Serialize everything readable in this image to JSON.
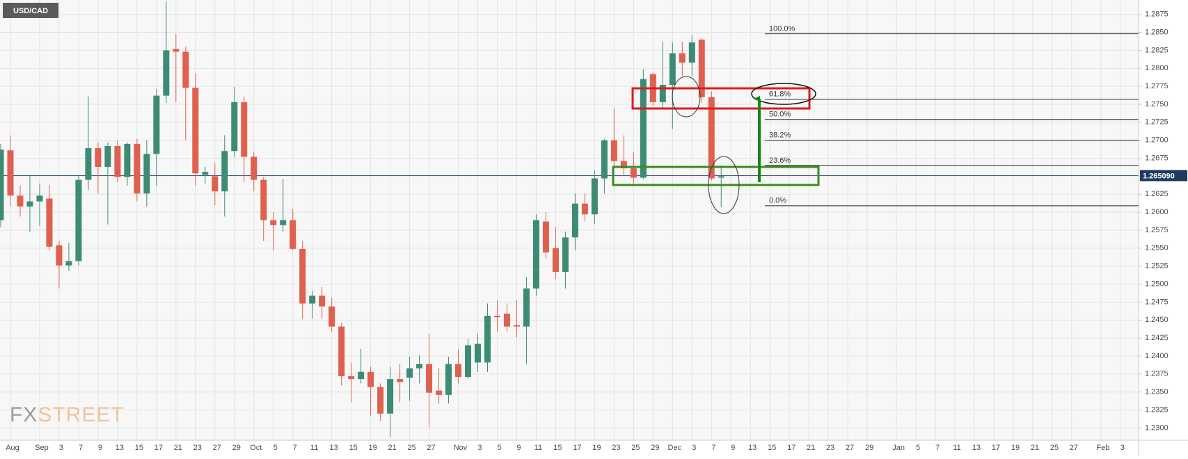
{
  "chart_data": {
    "type": "candlestick",
    "title": "USD/CAD",
    "watermark": {
      "fx": "FX",
      "street": "STREET"
    },
    "categories": [
      null,
      "Aug",
      null,
      null,
      "Sep",
      null,
      "3",
      null,
      "7",
      null,
      "9",
      null,
      "13",
      null,
      "15",
      null,
      "17",
      null,
      "21",
      null,
      "23",
      null,
      "27",
      null,
      "29",
      null,
      "Oct",
      null,
      "5",
      null,
      "7",
      null,
      "11",
      null,
      "13",
      null,
      "15",
      null,
      "19",
      null,
      "21",
      null,
      "25",
      null,
      "27",
      null,
      null,
      "Nov",
      null,
      "3",
      null,
      "5",
      null,
      "9",
      null,
      "11",
      null,
      "15",
      null,
      "17",
      null,
      "19",
      null,
      "23",
      null,
      "25",
      null,
      "29",
      null,
      "Dec",
      null,
      "3",
      null,
      "7",
      null,
      "9",
      null,
      "13",
      null,
      "15",
      null,
      "17",
      null,
      "21",
      null,
      "23",
      null,
      "27",
      null,
      "29",
      null,
      null,
      "Jan",
      null,
      "5",
      null,
      "7",
      null,
      "11",
      null,
      "13",
      null,
      "17",
      null,
      "19",
      null,
      "21",
      null,
      "25",
      null,
      "27",
      null,
      null,
      "Feb",
      null,
      "3",
      null
    ],
    "open": [
      1.2589,
      1.2686,
      1.2623,
      1.2608,
      1.2615,
      1.2619,
      1.2554,
      1.2526,
      1.2532,
      1.2645,
      1.2689,
      1.2663,
      1.2692,
      1.2649,
      1.2695,
      1.2626,
      1.2681,
      1.2762,
      1.2827,
      1.2823,
      1.2773,
      1.2652,
      1.265,
      1.2629,
      1.2685,
      1.2753,
      1.2677,
      1.2645,
      1.2589,
      1.2582,
      1.2589,
      1.2549,
      1.2473,
      1.2484,
      1.2469,
      1.2441,
      1.2372,
      1.2368,
      1.2378,
      1.2357,
      1.232,
      1.2368,
      1.237,
      1.2383,
      1.2389,
      1.2352,
      1.2346,
      1.2389,
      1.2371,
      1.2391,
      1.2391,
      1.2456,
      1.2459,
      1.2443,
      1.2441,
      1.2494,
      1.2587,
      1.255,
      1.2517,
      1.2565,
      1.2612,
      1.2597,
      1.2647,
      1.27,
      1.2671,
      1.2661,
      1.2648,
      1.2792,
      1.2753,
      1.2777,
      1.2821,
      1.2808,
      1.284,
      1.276,
      1.2648,
      null,
      null,
      null,
      null,
      null,
      null,
      null,
      null,
      null,
      null,
      null,
      null,
      null,
      null,
      null,
      null,
      null,
      null,
      null,
      null,
      null,
      null,
      null,
      null,
      null,
      null,
      null,
      null,
      null,
      null,
      null,
      null,
      null,
      null,
      null,
      null,
      null,
      null,
      null,
      null,
      null,
      null
    ],
    "high": [
      1.2695,
      1.2707,
      1.2637,
      1.2652,
      1.264,
      1.2638,
      1.256,
      1.2557,
      1.2652,
      1.2761,
      1.2697,
      1.2697,
      1.27,
      1.2697,
      1.2702,
      1.27,
      1.2771,
      1.2893,
      1.2848,
      1.283,
      1.2793,
      1.2663,
      1.2668,
      1.2707,
      1.2774,
      1.2761,
      1.2684,
      1.2649,
      1.26,
      1.2646,
      1.2604,
      1.256,
      1.2491,
      1.2496,
      1.2481,
      1.2446,
      1.2391,
      1.241,
      1.2385,
      1.2362,
      1.2385,
      1.2389,
      1.2399,
      1.2401,
      1.2431,
      1.2383,
      1.2399,
      1.241,
      1.2424,
      1.2431,
      1.2473,
      1.2478,
      1.2473,
      1.2478,
      1.251,
      1.2597,
      1.26,
      1.2579,
      1.2573,
      1.2626,
      1.2626,
      1.2658,
      1.2702,
      1.2744,
      1.2707,
      1.2684,
      1.2799,
      1.2794,
      1.2837,
      1.2836,
      1.2837,
      1.2846,
      1.2842,
      1.2768,
      1.2665,
      null,
      null,
      null,
      null,
      null,
      null,
      null,
      null,
      null,
      null,
      null,
      null,
      null,
      null,
      null,
      null,
      null,
      null,
      null,
      null,
      null,
      null,
      null,
      null,
      null,
      null,
      null,
      null,
      null,
      null,
      null,
      null,
      null,
      null,
      null,
      null,
      null,
      null,
      null,
      null,
      null,
      null
    ],
    "low": [
      1.2579,
      1.2608,
      1.2594,
      1.2573,
      1.2581,
      1.2547,
      1.2494,
      1.2518,
      1.2526,
      1.2631,
      1.2626,
      1.2583,
      1.2642,
      1.2637,
      1.2615,
      1.2608,
      1.2637,
      1.2752,
      1.2753,
      1.27,
      1.2637,
      1.264,
      1.261,
      1.2594,
      1.2677,
      1.2642,
      1.2629,
      1.256,
      1.2547,
      1.2573,
      1.2547,
      1.2452,
      1.2452,
      1.2452,
      1.2434,
      1.2359,
      1.2336,
      1.2362,
      1.2317,
      1.231,
      1.2288,
      1.2336,
      1.2338,
      1.2362,
      1.2301,
      1.2334,
      1.2334,
      1.2362,
      1.2368,
      1.2378,
      1.2378,
      1.2434,
      1.2434,
      1.2426,
      1.2389,
      1.2484,
      1.2536,
      1.2507,
      1.2494,
      1.2547,
      1.2587,
      1.2584,
      1.2626,
      1.2663,
      1.265,
      1.264,
      1.2646,
      1.2747,
      1.2745,
      1.2716,
      1.2789,
      1.2789,
      1.2752,
      1.2644,
      1.2607,
      null,
      null,
      null,
      null,
      null,
      null,
      null,
      null,
      null,
      null,
      null,
      null,
      null,
      null,
      null,
      null,
      null,
      null,
      null,
      null,
      null,
      null,
      null,
      null,
      null,
      null,
      null,
      null,
      null,
      null,
      null,
      null,
      null,
      null,
      null,
      null,
      null,
      null,
      null,
      null,
      null,
      null
    ],
    "close": [
      1.2687,
      1.2623,
      1.2608,
      1.2615,
      1.2623,
      1.2552,
      1.2526,
      1.2532,
      1.2645,
      1.2689,
      1.2663,
      1.2692,
      1.2649,
      1.2695,
      1.2626,
      1.2681,
      1.2762,
      1.2825,
      1.2823,
      1.2773,
      1.2654,
      1.2656,
      1.2629,
      1.2685,
      1.2753,
      1.2677,
      1.2645,
      1.2589,
      1.2582,
      1.2589,
      1.2549,
      1.2473,
      1.2484,
      1.2469,
      1.2441,
      1.2372,
      1.2368,
      1.2378,
      1.2357,
      1.232,
      1.2368,
      1.2364,
      1.2383,
      1.2389,
      1.2349,
      1.2346,
      1.2389,
      1.2371,
      1.2415,
      1.2417,
      1.2456,
      1.2454,
      1.2441,
      1.2441,
      1.2494,
      1.2589,
      1.2544,
      1.2517,
      1.2565,
      1.2612,
      1.2597,
      1.2647,
      1.27,
      1.2671,
      1.2661,
      1.2648,
      1.2785,
      1.2753,
      1.2777,
      1.2821,
      1.2808,
      1.2836,
      1.276,
      1.2647,
      1.265,
      null,
      null,
      null,
      null,
      null,
      null,
      null,
      null,
      null,
      null,
      null,
      null,
      null,
      null,
      null,
      null,
      null,
      null,
      null,
      null,
      null,
      null,
      null,
      null,
      null,
      null,
      null,
      null,
      null,
      null,
      null,
      null,
      null,
      null,
      null,
      null,
      null,
      null,
      null,
      null,
      null,
      null
    ],
    "up_color": "#3d8b74",
    "down_color": "#e0604f",
    "ylim": [
      1.2283,
      1.2895
    ],
    "yticks": [
      {
        "value": 1.23,
        "label": "1.2300"
      },
      {
        "value": 1.2325,
        "label": "1.2325"
      },
      {
        "value": 1.235,
        "label": "1.2350"
      },
      {
        "value": 1.2375,
        "label": "1.2375"
      },
      {
        "value": 1.24,
        "label": "1.2400"
      },
      {
        "value": 1.2425,
        "label": "1.2425"
      },
      {
        "value": 1.245,
        "label": "1.2450"
      },
      {
        "value": 1.2475,
        "label": "1.2475"
      },
      {
        "value": 1.25,
        "label": "1.2500"
      },
      {
        "value": 1.2525,
        "label": "1.2525"
      },
      {
        "value": 1.255,
        "label": "1.2550"
      },
      {
        "value": 1.2575,
        "label": "1.2575"
      },
      {
        "value": 1.26,
        "label": "1.2600"
      },
      {
        "value": 1.2625,
        "label": "1.2625"
      },
      {
        "value": 1.265,
        "label": "1.2650"
      },
      {
        "value": 1.2675,
        "label": "1.2675"
      },
      {
        "value": 1.27,
        "label": "1.2700"
      },
      {
        "value": 1.2725,
        "label": "1.2725"
      },
      {
        "value": 1.275,
        "label": "1.2750"
      },
      {
        "value": 1.2775,
        "label": "1.2775"
      },
      {
        "value": 1.28,
        "label": "1.2800"
      },
      {
        "value": 1.2825,
        "label": "1.2825"
      },
      {
        "value": 1.285,
        "label": "1.2850"
      },
      {
        "value": 1.2875,
        "label": "1.2875"
      }
    ],
    "grid": true,
    "last_price": {
      "value": 1.26509,
      "label": "1.265090"
    },
    "fib_levels": [
      {
        "label": "100.0%",
        "value": 1.2848
      },
      {
        "label": "61.8%",
        "value": 1.2757
      },
      {
        "label": "50.0%",
        "value": 1.2729
      },
      {
        "label": "38.2%",
        "value": 1.27
      },
      {
        "label": "23.6%",
        "value": 1.2665
      },
      {
        "label": "0.0%",
        "value": 1.2609
      }
    ]
  }
}
